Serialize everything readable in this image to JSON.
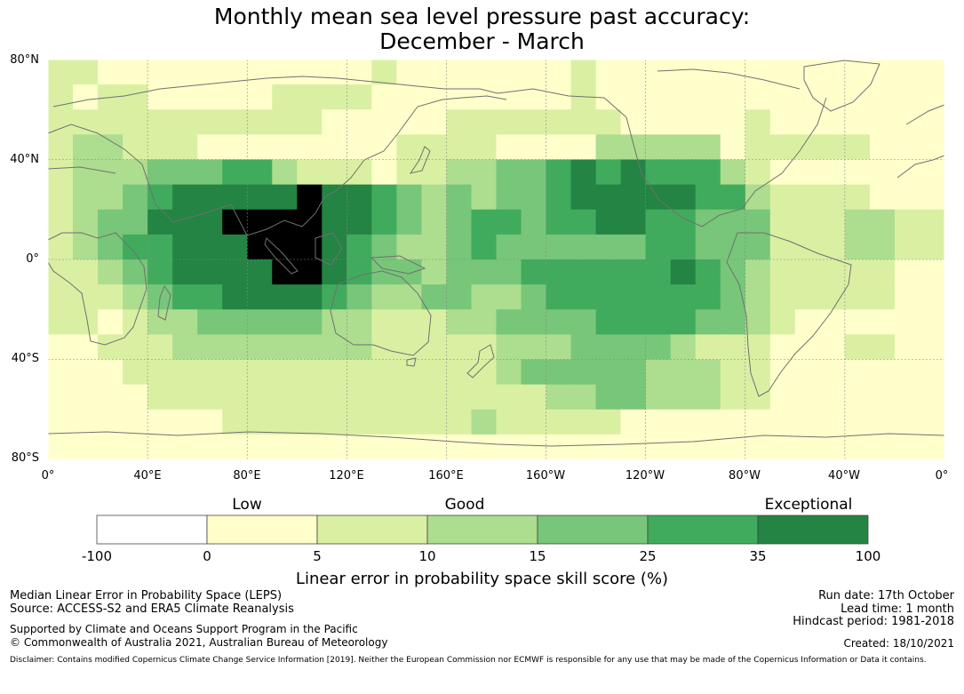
{
  "title": {
    "line1": "Monthly mean sea level pressure past accuracy:",
    "line2": "December - March"
  },
  "map": {
    "lat_labels": [
      "80°N",
      "40°N",
      "0°",
      "40°S",
      "80°S"
    ],
    "lon_labels": [
      "0°",
      "40°E",
      "80°E",
      "120°E",
      "160°E",
      "160°W",
      "120°W",
      "80°W",
      "40°W",
      "0°"
    ],
    "skill_grid": [
      "221111111111121111111211111111111111",
      "212211111222211111111211111111111111",
      "222222222221111122222221111121111111",
      "233222111111112222111133333122222111",
      "233344455322212233445656555321111111",
      "233456666676654343445666665532222111",
      "234466677776654345545566554442223322",
      "234556667776543345444444554442223322",
      "223456666776544344455555565432222211",
      "222345566665433443345555555432222211",
      "221233444443322233444455554432111111",
      "112223333333322222333444432221112211",
      "111222222222222222344444333221111111",
      "111122222222222222223344333221111111",
      "111111122222222223222221111111111111",
      "111111111111111111111111111111111111"
    ]
  },
  "legend": {
    "low": "Low",
    "good": "Good",
    "exceptional": "Exceptional",
    "ticks": [
      "-100",
      "0",
      "5",
      "10",
      "15",
      "25",
      "35",
      "100"
    ],
    "colors": [
      "#ffffff",
      "#ffffcc",
      "#d9f0a3",
      "#addd8e",
      "#78c679",
      "#41ab5d",
      "#238443"
    ],
    "title": "Linear error in probability space skill score (%)"
  },
  "info": {
    "left1": "Median Linear Error in Probability Space (LEPS)",
    "left2": "Source: ACCESS-S2 and ERA5 Climate Reanalysis",
    "left3": "Supported by Climate and Oceans Support Program in the Pacific",
    "left4": "© Commonwealth of Australia 2021, Australian Bureau of Meteorology",
    "right1": "Run date: 17th October",
    "right2": "Lead time: 1 month",
    "right3": "Hindcast period: 1981-2018",
    "right4": "Created: 18/10/2021",
    "disclaimer": "Disclaimer: Contains modified Copernicus Climate Change Service Information [2019]. Neither the European Commission nor ECMWF is responsible for any use that may be made of the Copernicus Information or Data it contains."
  }
}
